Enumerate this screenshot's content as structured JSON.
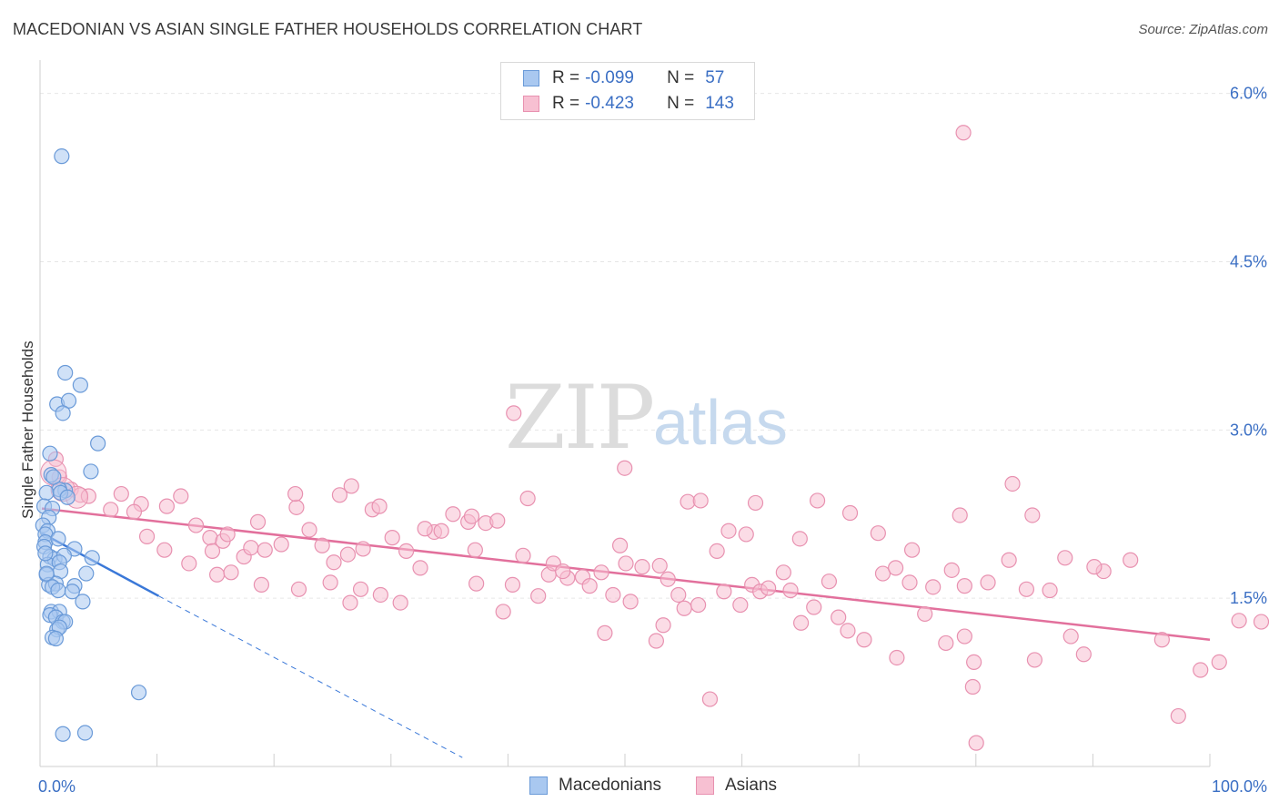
{
  "title": "MACEDONIAN VS ASIAN SINGLE FATHER HOUSEHOLDS CORRELATION CHART",
  "source": "Source: ZipAtlas.com",
  "watermark": {
    "zip": "ZIP",
    "atlas": "atlas"
  },
  "legend_top": [
    {
      "r_label": "R =",
      "r_value": "-0.099",
      "n_label": "N =",
      "n_value": "57",
      "color": "#a9c8f0",
      "stroke": "#6a9ad8"
    },
    {
      "r_label": "R =",
      "r_value": "-0.423",
      "n_label": "N =",
      "n_value": "143",
      "color": "#f7c0d2",
      "stroke": "#e891b0"
    }
  ],
  "legend_bottom": [
    {
      "label": "Macedonians",
      "color": "#a9c8f0",
      "stroke": "#6a9ad8"
    },
    {
      "label": "Asians",
      "color": "#f7c0d2",
      "stroke": "#e891b0"
    }
  ],
  "chart_data": {
    "type": "scatter",
    "title": "MACEDONIAN VS ASIAN SINGLE FATHER HOUSEHOLDS CORRELATION CHART",
    "xlabel": "",
    "ylabel": "Single Father Households",
    "xlim": [
      0,
      100
    ],
    "ylim": [
      0,
      6.2
    ],
    "x_tick_labels": [
      "0.0%",
      "100.0%"
    ],
    "y_ticks": [
      1.5,
      3.0,
      4.5,
      6.0
    ],
    "y_tick_labels": [
      "1.5%",
      "3.0%",
      "4.5%",
      "6.0%"
    ],
    "grid": true,
    "series": [
      {
        "name": "Macedonians",
        "color": "#a9c8f0",
        "stroke": "#6a9ad8",
        "line_color": "#3a78d8",
        "trend": {
          "x0": 0,
          "y0": 2.08,
          "x1": 10,
          "y1": 1.52,
          "dash_x1": 36,
          "dash_y1": 0.08
        },
        "points": [
          [
            1.7,
            5.44
          ],
          [
            2.0,
            3.51
          ],
          [
            3.3,
            3.4
          ],
          [
            1.3,
            3.23
          ],
          [
            2.3,
            3.26
          ],
          [
            1.8,
            3.15
          ],
          [
            4.8,
            2.88
          ],
          [
            0.7,
            2.79
          ],
          [
            4.2,
            2.63
          ],
          [
            0.8,
            2.6
          ],
          [
            2.0,
            2.46
          ],
          [
            1.5,
            2.47
          ],
          [
            0.4,
            2.44
          ],
          [
            0.2,
            2.32
          ],
          [
            0.9,
            2.3
          ],
          [
            0.6,
            2.22
          ],
          [
            0.1,
            2.15
          ],
          [
            0.5,
            2.1
          ],
          [
            0.3,
            2.07
          ],
          [
            0.3,
            2.0
          ],
          [
            1.4,
            2.03
          ],
          [
            0.2,
            1.96
          ],
          [
            2.8,
            1.94
          ],
          [
            0.7,
            1.87
          ],
          [
            1.1,
            1.85
          ],
          [
            1.9,
            1.88
          ],
          [
            4.3,
            1.86
          ],
          [
            0.5,
            1.8
          ],
          [
            1.5,
            1.82
          ],
          [
            0.4,
            1.71
          ],
          [
            1.6,
            1.74
          ],
          [
            3.8,
            1.72
          ],
          [
            0.6,
            1.62
          ],
          [
            1.2,
            1.63
          ],
          [
            2.8,
            1.61
          ],
          [
            0.9,
            1.6
          ],
          [
            1.4,
            1.57
          ],
          [
            2.6,
            1.56
          ],
          [
            3.5,
            1.47
          ],
          [
            0.8,
            1.38
          ],
          [
            1.5,
            1.38
          ],
          [
            0.7,
            1.35
          ],
          [
            1.2,
            1.33
          ],
          [
            1.8,
            1.29
          ],
          [
            2.0,
            1.29
          ],
          [
            1.3,
            1.22
          ],
          [
            1.5,
            1.24
          ],
          [
            0.9,
            1.15
          ],
          [
            1.2,
            1.14
          ],
          [
            8.3,
            0.66
          ],
          [
            1.8,
            0.29
          ],
          [
            3.7,
            0.3
          ],
          [
            0.4,
            1.72
          ],
          [
            1.0,
            2.58
          ],
          [
            1.6,
            2.44
          ],
          [
            0.3,
            1.9
          ],
          [
            2.2,
            2.4
          ]
        ]
      },
      {
        "name": "Asians",
        "color": "#f7c0d2",
        "stroke": "#e891b0",
        "line_color": "#e2709c",
        "trend": {
          "x0": 0,
          "y0": 2.3,
          "x1": 100,
          "y1": 1.13
        },
        "points": [
          [
            1.2,
            2.74
          ],
          [
            1.5,
            2.58
          ],
          [
            2.5,
            2.47
          ],
          [
            3.3,
            2.42
          ],
          [
            4.0,
            2.41
          ],
          [
            6.8,
            2.43
          ],
          [
            11.9,
            2.41
          ],
          [
            5.9,
            2.29
          ],
          [
            8.5,
            2.34
          ],
          [
            10.7,
            2.32
          ],
          [
            13.2,
            2.15
          ],
          [
            14.4,
            2.04
          ],
          [
            14.6,
            1.92
          ],
          [
            15.5,
            2.01
          ],
          [
            15.9,
            2.07
          ],
          [
            17.3,
            1.87
          ],
          [
            17.9,
            1.95
          ],
          [
            18.5,
            2.18
          ],
          [
            19.1,
            1.93
          ],
          [
            20.5,
            1.98
          ],
          [
            21.8,
            2.31
          ],
          [
            22.9,
            2.11
          ],
          [
            24.0,
            1.97
          ],
          [
            25.0,
            1.82
          ],
          [
            26.2,
            1.89
          ],
          [
            27.5,
            1.94
          ],
          [
            28.3,
            2.29
          ],
          [
            28.9,
            2.32
          ],
          [
            30.0,
            2.04
          ],
          [
            31.2,
            1.92
          ],
          [
            32.4,
            1.77
          ],
          [
            33.6,
            2.09
          ],
          [
            35.2,
            2.25
          ],
          [
            36.5,
            2.18
          ],
          [
            37.1,
            1.93
          ],
          [
            38.0,
            2.17
          ],
          [
            39.0,
            2.19
          ],
          [
            40.3,
            1.62
          ],
          [
            41.2,
            1.88
          ],
          [
            42.5,
            1.52
          ],
          [
            43.4,
            1.71
          ],
          [
            45.0,
            1.68
          ],
          [
            46.3,
            1.69
          ],
          [
            47.9,
            1.73
          ],
          [
            48.9,
            1.53
          ],
          [
            49.5,
            1.97
          ],
          [
            50.0,
            1.81
          ],
          [
            50.4,
            1.47
          ],
          [
            51.4,
            1.78
          ],
          [
            52.9,
            1.79
          ],
          [
            53.6,
            1.67
          ],
          [
            54.5,
            1.53
          ],
          [
            55.0,
            1.41
          ],
          [
            56.2,
            1.44
          ],
          [
            57.8,
            1.92
          ],
          [
            58.4,
            1.56
          ],
          [
            59.8,
            1.44
          ],
          [
            60.8,
            1.62
          ],
          [
            61.5,
            1.56
          ],
          [
            62.2,
            1.59
          ],
          [
            63.5,
            1.73
          ],
          [
            64.1,
            1.57
          ],
          [
            65.0,
            1.28
          ],
          [
            66.1,
            1.42
          ],
          [
            67.4,
            1.65
          ],
          [
            68.2,
            1.33
          ],
          [
            69.0,
            1.21
          ],
          [
            70.4,
            1.13
          ],
          [
            72.0,
            1.72
          ],
          [
            73.1,
            1.77
          ],
          [
            74.3,
            1.64
          ],
          [
            75.6,
            1.36
          ],
          [
            76.3,
            1.6
          ],
          [
            77.9,
            1.75
          ],
          [
            79.0,
            1.61
          ],
          [
            81.0,
            1.64
          ],
          [
            82.8,
            1.84
          ],
          [
            84.3,
            1.58
          ],
          [
            85.0,
            0.95
          ],
          [
            86.3,
            1.57
          ],
          [
            87.6,
            1.86
          ],
          [
            88.1,
            1.16
          ],
          [
            89.2,
            1.0
          ],
          [
            90.9,
            1.74
          ],
          [
            74.5,
            1.93
          ],
          [
            25.5,
            2.42
          ],
          [
            21.7,
            2.43
          ],
          [
            26.5,
            2.5
          ],
          [
            32.8,
            2.12
          ],
          [
            34.2,
            2.1
          ],
          [
            36.8,
            2.23
          ],
          [
            41.6,
            2.39
          ],
          [
            43.8,
            1.81
          ],
          [
            46.9,
            1.61
          ],
          [
            48.2,
            1.19
          ],
          [
            52.6,
            1.12
          ],
          [
            55.3,
            2.36
          ],
          [
            56.4,
            2.37
          ],
          [
            58.8,
            2.1
          ],
          [
            60.3,
            2.07
          ],
          [
            61.1,
            2.35
          ],
          [
            64.9,
            2.03
          ],
          [
            66.4,
            2.37
          ],
          [
            69.2,
            2.26
          ],
          [
            71.6,
            2.08
          ],
          [
            73.2,
            0.97
          ],
          [
            77.4,
            1.1
          ],
          [
            79.8,
            0.93
          ],
          [
            78.6,
            2.24
          ],
          [
            79.0,
            1.16
          ],
          [
            83.1,
            2.52
          ],
          [
            84.8,
            2.24
          ],
          [
            90.1,
            1.78
          ],
          [
            93.2,
            1.84
          ],
          [
            95.9,
            1.13
          ],
          [
            97.3,
            0.45
          ],
          [
            99.2,
            0.86
          ],
          [
            100.8,
            0.93
          ],
          [
            104.4,
            1.29
          ],
          [
            102.5,
            1.3
          ],
          [
            40.4,
            3.15
          ],
          [
            49.9,
            2.66
          ],
          [
            57.2,
            0.6
          ],
          [
            79.7,
            0.71
          ],
          [
            80.0,
            0.21
          ],
          [
            78.9,
            5.65
          ],
          [
            7.9,
            2.27
          ],
          [
            9.0,
            2.05
          ],
          [
            10.5,
            1.93
          ],
          [
            12.6,
            1.81
          ],
          [
            15.0,
            1.71
          ],
          [
            16.2,
            1.73
          ],
          [
            18.8,
            1.62
          ],
          [
            22.0,
            1.58
          ],
          [
            24.7,
            1.64
          ],
          [
            26.4,
            1.46
          ],
          [
            27.3,
            1.58
          ],
          [
            29.0,
            1.53
          ],
          [
            30.7,
            1.46
          ],
          [
            37.2,
            1.63
          ],
          [
            39.5,
            1.38
          ],
          [
            44.6,
            1.74
          ],
          [
            53.2,
            1.26
          ]
        ]
      }
    ]
  }
}
